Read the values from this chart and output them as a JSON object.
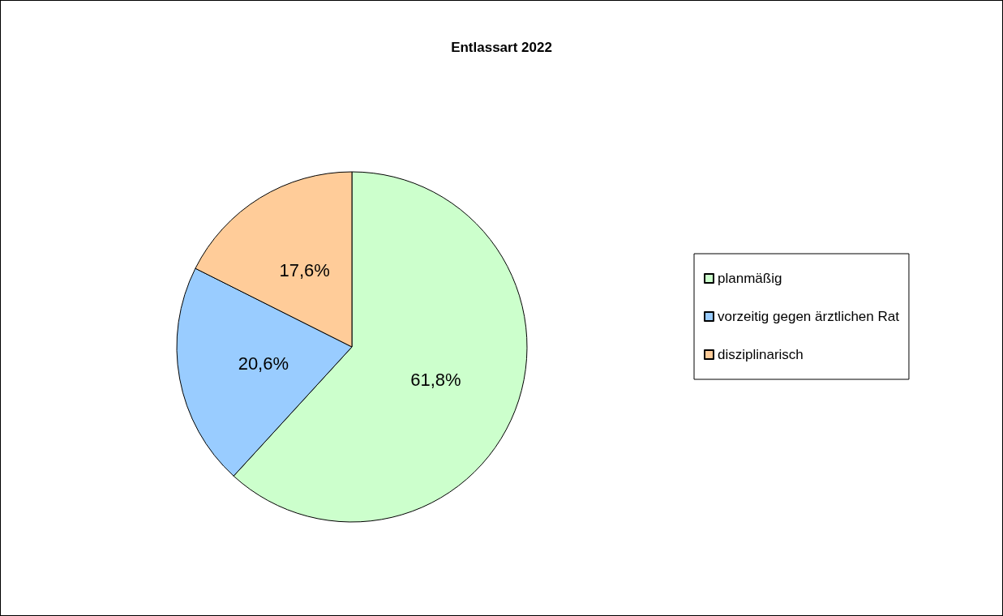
{
  "chart_data": {
    "type": "pie",
    "title": "Entlassart 2022",
    "categories": [
      "planmäßig",
      "vorzeitig gegen ärztlichen Rat",
      "disziplinarisch"
    ],
    "values": [
      61.8,
      20.6,
      17.6
    ],
    "colors": [
      "#ccffcc",
      "#99ccff",
      "#ffcc99"
    ],
    "value_labels": [
      "61,8%",
      "20,6%",
      "17,6%"
    ],
    "legend": "right"
  }
}
